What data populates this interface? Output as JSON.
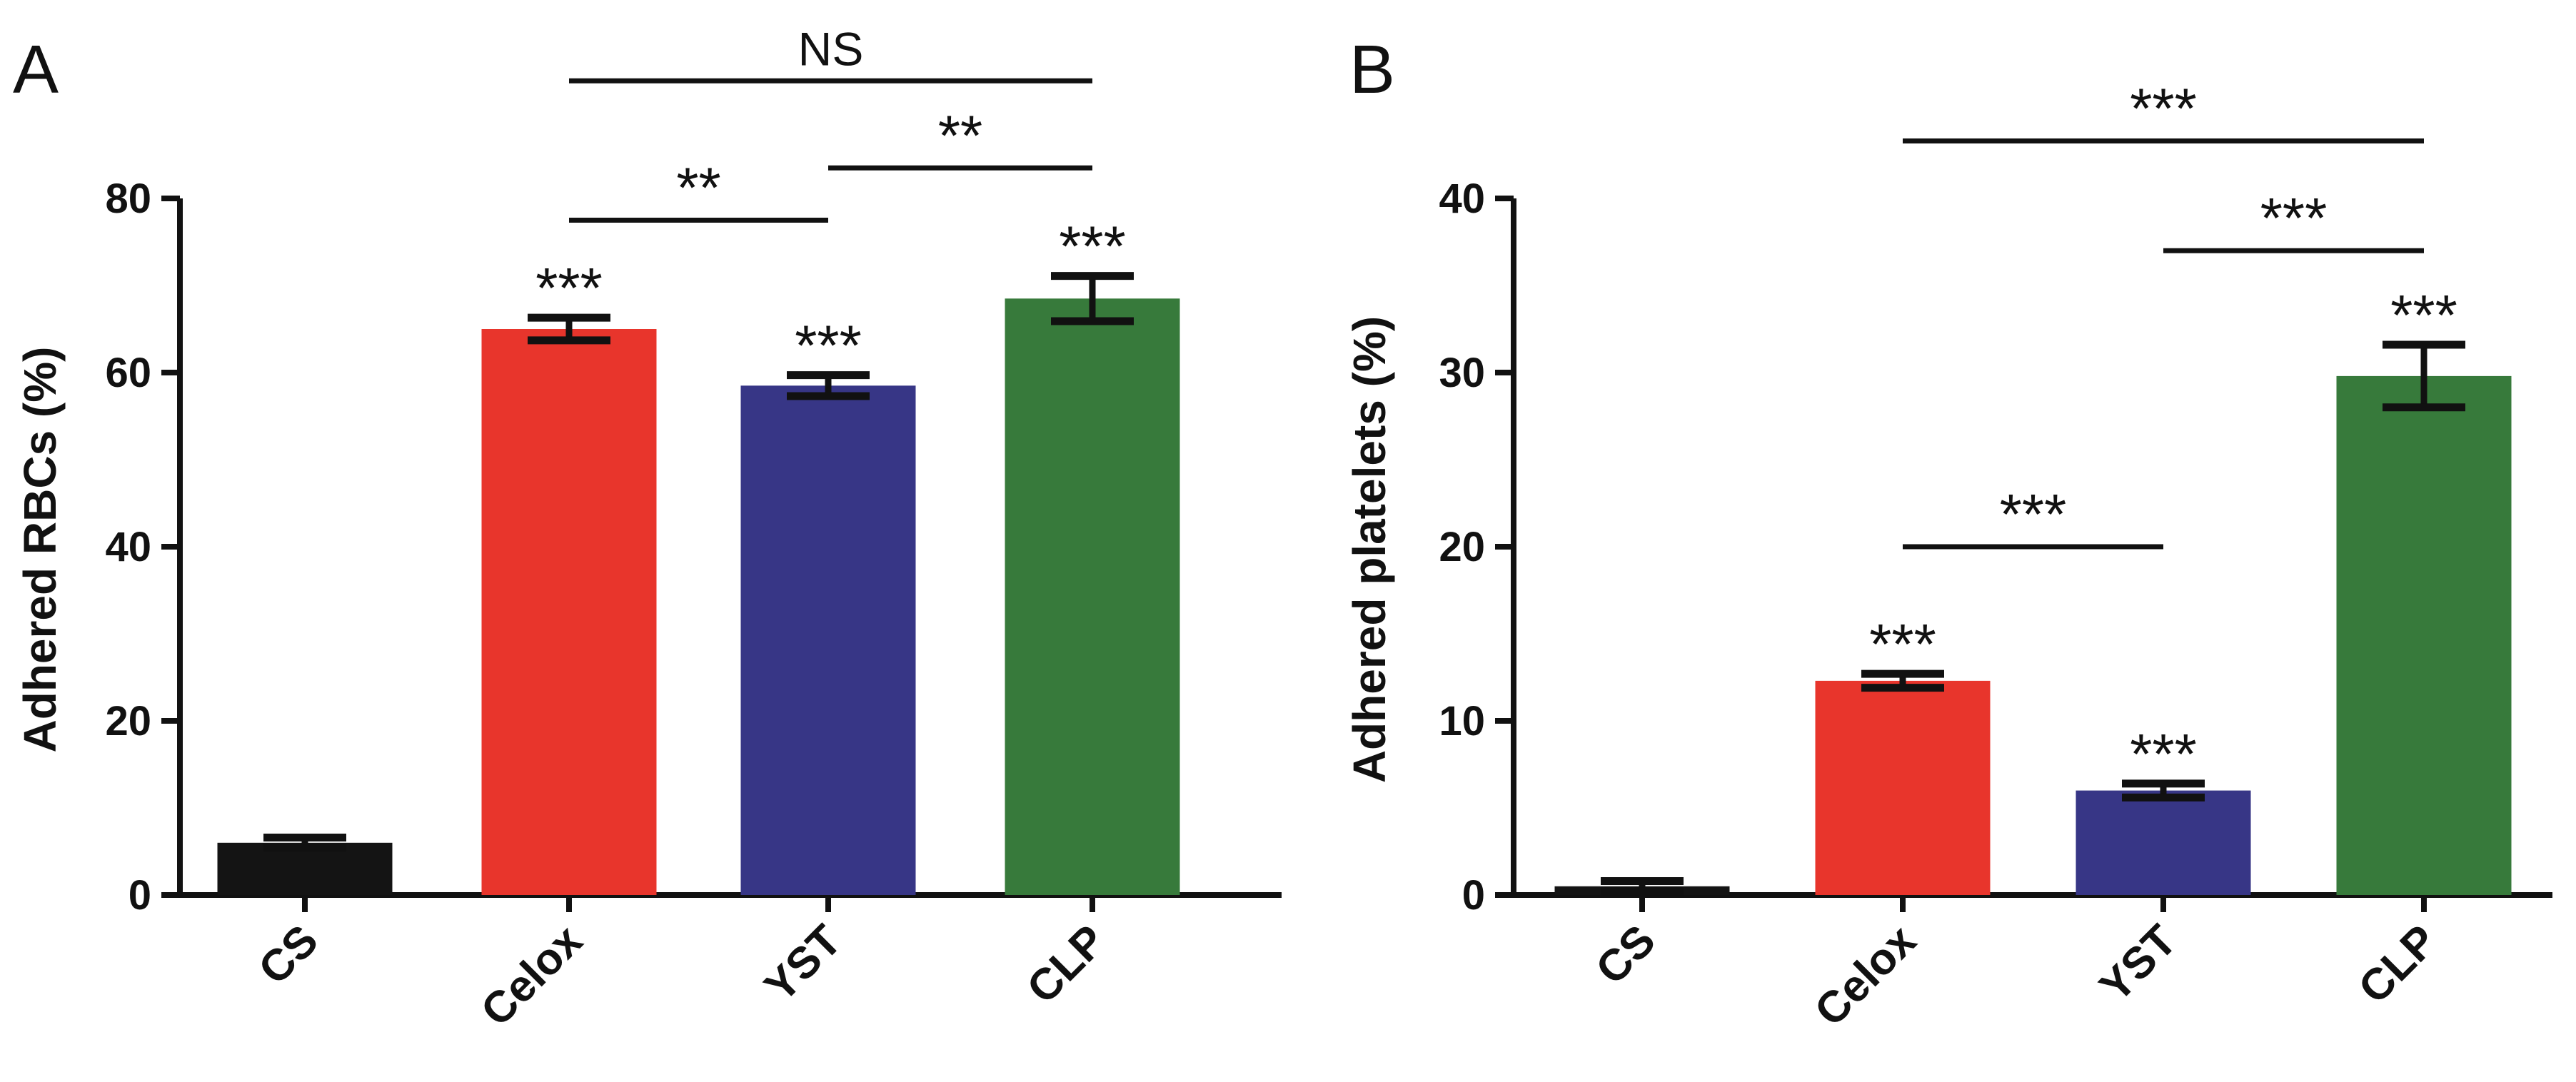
{
  "chart_data": [
    {
      "type": "bar",
      "panel": "A",
      "categories": [
        "CS",
        "Celox",
        "YST",
        "CLP"
      ],
      "values": [
        6,
        65,
        58.5,
        68.5
      ],
      "errors": [
        0.6,
        1.3,
        1.2,
        2.6
      ],
      "colors": [
        "#141414",
        "#e8352c",
        "#373686",
        "#377a3b"
      ],
      "ylabel": "Adhered RBCs (%)",
      "ylim": [
        0,
        80
      ],
      "yticks": [
        0,
        20,
        40,
        60,
        80
      ],
      "bar_labels": [
        "",
        "***",
        "***",
        "***"
      ],
      "brackets": [
        {
          "from": 1,
          "to": 2,
          "y": 77.5,
          "label": "**"
        },
        {
          "from": 2,
          "to": 3,
          "y": 83.5,
          "label": "**"
        },
        {
          "from": 1,
          "to": 3,
          "y": 93.5,
          "label": "NS"
        }
      ]
    },
    {
      "type": "bar",
      "panel": "B",
      "categories": [
        "CS",
        "Celox",
        "YST",
        "CLP"
      ],
      "values": [
        0.5,
        12.3,
        6.0,
        29.8
      ],
      "errors": [
        0.3,
        0.4,
        0.4,
        1.8
      ],
      "colors": [
        "#141414",
        "#e8352c",
        "#373686",
        "#377a3b"
      ],
      "ylabel": "Adhered platelets (%)",
      "ylim": [
        0,
        40
      ],
      "yticks": [
        0,
        10,
        20,
        30,
        40
      ],
      "bar_labels": [
        "",
        "***",
        "***",
        "***"
      ],
      "brackets": [
        {
          "from": 1,
          "to": 2,
          "y": 20,
          "label": "***"
        },
        {
          "from": 2,
          "to": 3,
          "y": 37,
          "label": "***"
        },
        {
          "from": 1,
          "to": 3,
          "y": 43.3,
          "label": "***"
        }
      ]
    }
  ]
}
